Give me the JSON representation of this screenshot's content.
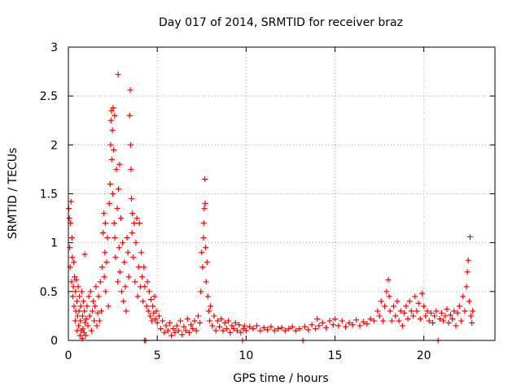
{
  "chart_data": {
    "type": "scatter",
    "title": "Day 017 of 2014, SRMTID for receiver braz",
    "xlabel": "GPS time / hours",
    "ylabel": "SRMTID / TECUs",
    "xlim": [
      0,
      24
    ],
    "ylim": [
      0,
      3
    ],
    "xticks": [
      0,
      5,
      10,
      15,
      20
    ],
    "yticks": [
      0,
      0.5,
      1,
      1.5,
      2,
      2.5,
      3
    ],
    "xtick_labels": [
      "0",
      "5",
      "10",
      "15",
      "20"
    ],
    "ytick_labels": [
      "0",
      "0.5",
      "1",
      "1.5",
      "2",
      "2.5",
      "3"
    ],
    "grid": true,
    "marker": "+",
    "color": "#ff0000",
    "series": [
      {
        "name": "SRMTID",
        "points": [
          [
            0.02,
            1.35
          ],
          [
            0.05,
            1.25
          ],
          [
            0.08,
            0.95
          ],
          [
            0.1,
            0.75
          ],
          [
            0.12,
            1.2
          ],
          [
            0.15,
            1.42
          ],
          [
            0.18,
            0.6
          ],
          [
            0.2,
            1.05
          ],
          [
            0.22,
            0.85
          ],
          [
            0.25,
            0.45
          ],
          [
            0.28,
            0.55
          ],
          [
            0.3,
            0.8
          ],
          [
            0.32,
            0.35
          ],
          [
            0.35,
            0.65
          ],
          [
            0.38,
            0.2
          ],
          [
            0.4,
            0.5
          ],
          [
            0.42,
            0.3
          ],
          [
            0.45,
            0.62
          ],
          [
            0.48,
            0.4
          ],
          [
            0.5,
            0.1
          ],
          [
            0.52,
            0.25
          ],
          [
            0.55,
            0.55
          ],
          [
            0.58,
            0.15
          ],
          [
            0.6,
            0.3
          ],
          [
            0.62,
            0.45
          ],
          [
            0.65,
            0.05
          ],
          [
            0.68,
            0.2
          ],
          [
            0.7,
            0.35
          ],
          [
            0.72,
            0.1
          ],
          [
            0.75,
            0.5
          ],
          [
            0.78,
            0.02
          ],
          [
            0.8,
            0.25
          ],
          [
            0.82,
            0.12
          ],
          [
            0.85,
            0.4
          ],
          [
            0.88,
            0.08
          ],
          [
            0.9,
            0.3
          ],
          [
            0.92,
            0.88
          ],
          [
            0.95,
            0.18
          ],
          [
            0.98,
            0.05
          ],
          [
            1.0,
            0.22
          ],
          [
            1.05,
            0.35
          ],
          [
            1.1,
            0.15
          ],
          [
            1.15,
            0.45
          ],
          [
            1.2,
            0.25
          ],
          [
            1.25,
            0.5
          ],
          [
            1.3,
            0.1
          ],
          [
            1.35,
            0.3
          ],
          [
            1.4,
            0.4
          ],
          [
            1.45,
            0.2
          ],
          [
            1.5,
            0.35
          ],
          [
            1.55,
            0.55
          ],
          [
            1.6,
            0.15
          ],
          [
            1.65,
            0.28
          ],
          [
            1.7,
            0.45
          ],
          [
            1.75,
            0.2
          ],
          [
            1.8,
            0.6
          ],
          [
            1.85,
            0.3
          ],
          [
            1.9,
            0.75
          ],
          [
            1.95,
            1.1
          ],
          [
            2.0,
            1.3
          ],
          [
            2.02,
            0.65
          ],
          [
            2.05,
            0.9
          ],
          [
            2.08,
            1.2
          ],
          [
            2.1,
            0.5
          ],
          [
            2.15,
            0.8
          ],
          [
            2.2,
            1.05
          ],
          [
            2.25,
            0.35
          ],
          [
            2.3,
            1.4
          ],
          [
            2.35,
            1.6
          ],
          [
            2.38,
            2.0
          ],
          [
            2.4,
            2.25
          ],
          [
            2.42,
            2.35
          ],
          [
            2.45,
            1.85
          ],
          [
            2.48,
            2.15
          ],
          [
            2.5,
            1.5
          ],
          [
            2.52,
            2.38
          ],
          [
            2.55,
            1.95
          ],
          [
            2.58,
            1.2
          ],
          [
            2.6,
            2.3
          ],
          [
            2.62,
            1.05
          ],
          [
            2.65,
            0.85
          ],
          [
            2.7,
            1.75
          ],
          [
            2.75,
            1.35
          ],
          [
            2.78,
            0.6
          ],
          [
            2.8,
            2.72
          ],
          [
            2.82,
            1.55
          ],
          [
            2.85,
            0.95
          ],
          [
            2.88,
            1.8
          ],
          [
            2.9,
            0.7
          ],
          [
            2.95,
            1.25
          ],
          [
            3.0,
            0.5
          ],
          [
            3.05,
            1.0
          ],
          [
            3.1,
            0.4
          ],
          [
            3.15,
            0.8
          ],
          [
            3.2,
            0.55
          ],
          [
            3.25,
            0.3
          ],
          [
            3.3,
            1.05
          ],
          [
            3.35,
            0.9
          ],
          [
            3.4,
            0.65
          ],
          [
            3.45,
            2.3
          ],
          [
            3.48,
            2.56
          ],
          [
            3.5,
            2.0
          ],
          [
            3.52,
            1.75
          ],
          [
            3.55,
            1.45
          ],
          [
            3.58,
            1.1
          ],
          [
            3.6,
            1.3
          ],
          [
            3.65,
            0.85
          ],
          [
            3.7,
            1.2
          ],
          [
            3.75,
            0.6
          ],
          [
            3.8,
            1.0
          ],
          [
            3.85,
            1.25
          ],
          [
            3.9,
            0.45
          ],
          [
            3.95,
            0.75
          ],
          [
            4.0,
            1.2
          ],
          [
            4.05,
            0.55
          ],
          [
            4.1,
            0.9
          ],
          [
            4.15,
            0.65
          ],
          [
            4.2,
            0.4
          ],
          [
            4.25,
            0.75
          ],
          [
            4.28,
            0.0
          ],
          [
            4.3,
            0.55
          ],
          [
            4.35,
            0.0
          ],
          [
            4.4,
            0.35
          ],
          [
            4.45,
            0.6
          ],
          [
            4.5,
            0.3
          ],
          [
            4.55,
            0.5
          ],
          [
            4.6,
            0.25
          ],
          [
            4.65,
            0.42
          ],
          [
            4.7,
            0.2
          ],
          [
            4.75,
            0.35
          ],
          [
            4.8,
            0.28
          ],
          [
            4.85,
            0.45
          ],
          [
            4.9,
            0.22
          ],
          [
            4.95,
            0.3
          ],
          [
            5.0,
            0.18
          ],
          [
            5.1,
            0.25
          ],
          [
            5.2,
            0.12
          ],
          [
            5.3,
            0.2
          ],
          [
            5.4,
            0.08
          ],
          [
            5.5,
            0.15
          ],
          [
            5.6,
            0.1
          ],
          [
            5.7,
            0.18
          ],
          [
            5.8,
            0.05
          ],
          [
            5.9,
            0.12
          ],
          [
            6.0,
            0.08
          ],
          [
            6.1,
            0.15
          ],
          [
            6.2,
            0.1
          ],
          [
            6.3,
            0.2
          ],
          [
            6.4,
            0.06
          ],
          [
            6.5,
            0.14
          ],
          [
            6.6,
            0.1
          ],
          [
            6.7,
            0.22
          ],
          [
            6.8,
            0.08
          ],
          [
            6.9,
            0.16
          ],
          [
            7.0,
            0.12
          ],
          [
            7.1,
            0.2
          ],
          [
            7.2,
            0.1
          ],
          [
            7.3,
            0.25
          ],
          [
            7.4,
            0.18
          ],
          [
            7.45,
            0.5
          ],
          [
            7.5,
            0.9
          ],
          [
            7.55,
            0.75
          ],
          [
            7.6,
            1.05
          ],
          [
            7.62,
            1.2
          ],
          [
            7.65,
            1.35
          ],
          [
            7.68,
            1.65
          ],
          [
            7.7,
            1.4
          ],
          [
            7.72,
            0.95
          ],
          [
            7.75,
            0.6
          ],
          [
            7.8,
            0.8
          ],
          [
            7.85,
            0.45
          ],
          [
            7.9,
            0.3
          ],
          [
            7.95,
            0.2
          ],
          [
            8.0,
            0.35
          ],
          [
            8.1,
            0.15
          ],
          [
            8.2,
            0.25
          ],
          [
            8.3,
            0.1
          ],
          [
            8.4,
            0.2
          ],
          [
            8.5,
            0.14
          ],
          [
            8.6,
            0.22
          ],
          [
            8.7,
            0.1
          ],
          [
            8.8,
            0.18
          ],
          [
            8.9,
            0.12
          ],
          [
            9.0,
            0.2
          ],
          [
            9.1,
            0.08
          ],
          [
            9.2,
            0.15
          ],
          [
            9.3,
            0.12
          ],
          [
            9.4,
            0.18
          ],
          [
            9.5,
            0.1
          ],
          [
            9.6,
            0.16
          ],
          [
            9.7,
            0.08
          ],
          [
            9.8,
            0.0
          ],
          [
            9.85,
            0.12
          ],
          [
            9.9,
            0.15
          ],
          [
            10.0,
            0.1
          ],
          [
            10.2,
            0.14
          ],
          [
            10.4,
            0.12
          ],
          [
            10.6,
            0.15
          ],
          [
            10.8,
            0.1
          ],
          [
            11.0,
            0.13
          ],
          [
            11.2,
            0.11
          ],
          [
            11.4,
            0.14
          ],
          [
            11.6,
            0.1
          ],
          [
            11.8,
            0.12
          ],
          [
            12.0,
            0.13
          ],
          [
            12.2,
            0.1
          ],
          [
            12.4,
            0.12
          ],
          [
            12.6,
            0.14
          ],
          [
            12.8,
            0.1
          ],
          [
            13.0,
            0.12
          ],
          [
            13.2,
            0.0
          ],
          [
            13.3,
            0.14
          ],
          [
            13.5,
            0.11
          ],
          [
            13.7,
            0.16
          ],
          [
            13.9,
            0.12
          ],
          [
            14.0,
            0.22
          ],
          [
            14.1,
            0.15
          ],
          [
            14.3,
            0.18
          ],
          [
            14.5,
            0.13
          ],
          [
            14.7,
            0.2
          ],
          [
            14.9,
            0.16
          ],
          [
            15.0,
            0.22
          ],
          [
            15.2,
            0.15
          ],
          [
            15.4,
            0.2
          ],
          [
            15.6,
            0.14
          ],
          [
            15.8,
            0.18
          ],
          [
            16.0,
            0.16
          ],
          [
            16.2,
            0.21
          ],
          [
            16.4,
            0.15
          ],
          [
            16.6,
            0.19
          ],
          [
            16.8,
            0.17
          ],
          [
            17.0,
            0.22
          ],
          [
            17.2,
            0.2
          ],
          [
            17.4,
            0.3
          ],
          [
            17.5,
            0.25
          ],
          [
            17.6,
            0.4
          ],
          [
            17.7,
            0.2
          ],
          [
            17.8,
            0.35
          ],
          [
            17.9,
            0.5
          ],
          [
            18.0,
            0.62
          ],
          [
            18.05,
            0.45
          ],
          [
            18.1,
            0.3
          ],
          [
            18.2,
            0.2
          ],
          [
            18.3,
            0.35
          ],
          [
            18.4,
            0.25
          ],
          [
            18.5,
            0.4
          ],
          [
            18.6,
            0.2
          ],
          [
            18.7,
            0.3
          ],
          [
            18.8,
            0.15
          ],
          [
            18.9,
            0.28
          ],
          [
            19.0,
            0.35
          ],
          [
            19.1,
            0.22
          ],
          [
            19.2,
            0.4
          ],
          [
            19.3,
            0.3
          ],
          [
            19.4,
            0.25
          ],
          [
            19.5,
            0.45
          ],
          [
            19.6,
            0.3
          ],
          [
            19.7,
            0.38
          ],
          [
            19.8,
            0.22
          ],
          [
            19.9,
            0.48
          ],
          [
            20.0,
            0.35
          ],
          [
            20.1,
            0.25
          ],
          [
            20.2,
            0.3
          ],
          [
            20.3,
            0.2
          ],
          [
            20.4,
            0.28
          ],
          [
            20.5,
            0.18
          ],
          [
            20.6,
            0.25
          ],
          [
            20.7,
            0.3
          ],
          [
            20.8,
            0.0
          ],
          [
            20.9,
            0.22
          ],
          [
            21.0,
            0.28
          ],
          [
            21.1,
            0.2
          ],
          [
            21.2,
            0.25
          ],
          [
            21.3,
            0.32
          ],
          [
            21.4,
            0.18
          ],
          [
            21.5,
            0.26
          ],
          [
            21.6,
            0.22
          ],
          [
            21.7,
            0.3
          ],
          [
            21.8,
            0.15
          ],
          [
            21.9,
            0.28
          ],
          [
            22.0,
            0.35
          ],
          [
            22.1,
            0.2
          ],
          [
            22.2,
            0.45
          ],
          [
            22.3,
            0.3
          ],
          [
            22.4,
            0.55
          ],
          [
            22.45,
            0.7
          ],
          [
            22.5,
            0.82
          ],
          [
            22.55,
            0.4
          ],
          [
            22.6,
            1.06
          ],
          [
            22.65,
            0.25
          ],
          [
            22.7,
            0.18
          ],
          [
            22.75,
            0.3
          ]
        ]
      }
    ]
  }
}
